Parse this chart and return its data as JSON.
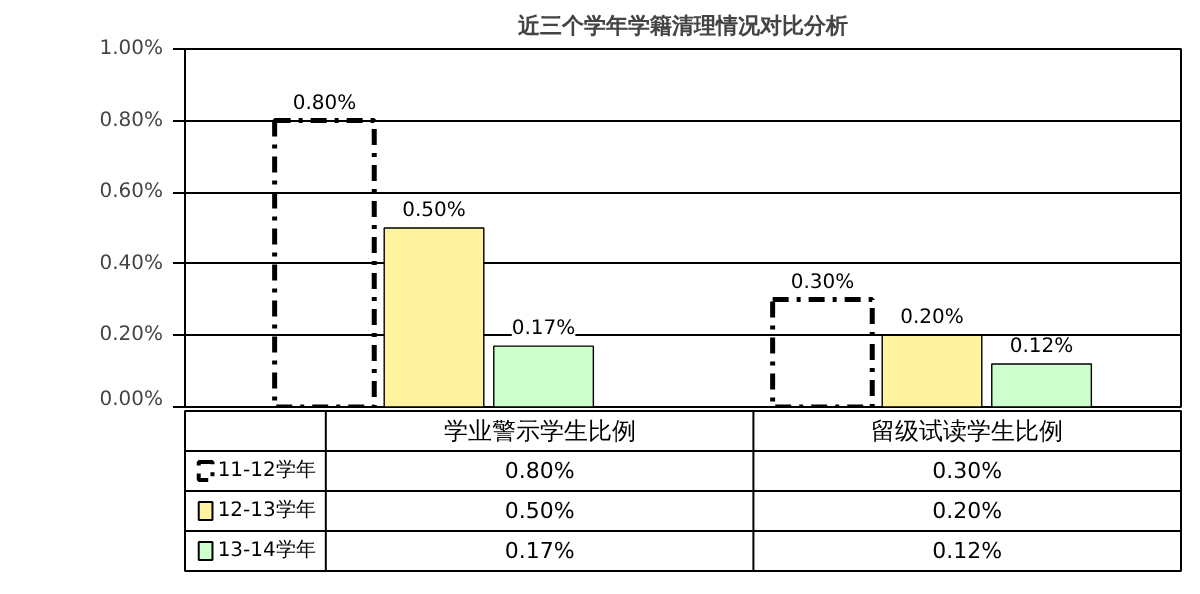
{
  "chart_data": {
    "type": "bar",
    "title": "近三个学年学籍清理情况对比分析",
    "categories": [
      "学业警示学生比例",
      "留级试读学生比例"
    ],
    "series": [
      {
        "name": "11-12学年",
        "color": "#000000",
        "line_style": "dashed",
        "values": [
          0.8,
          0.3
        ],
        "value_labels": [
          "0.80%",
          "0.30%"
        ]
      },
      {
        "name": "12-13学年",
        "color": "#fff3a0",
        "values": [
          0.5,
          0.2
        ],
        "value_labels": [
          "0.50%",
          "0.20%"
        ]
      },
      {
        "name": "13-14学年",
        "color": "#ccffcc",
        "values": [
          0.17,
          0.12
        ],
        "value_labels": [
          "0.17%",
          "0.12%"
        ]
      }
    ],
    "ylim": [
      0,
      1
    ],
    "yticks": [
      {
        "value": 0,
        "label": "0.00%"
      },
      {
        "value": 0.2,
        "label": "0.20%"
      },
      {
        "value": 0.4,
        "label": "0.40%"
      },
      {
        "value": 0.6,
        "label": "0.60%"
      },
      {
        "value": 0.8,
        "label": "0.80%"
      },
      {
        "value": 1.0,
        "label": "1.00%"
      }
    ],
    "grid": "y",
    "legend": "bottom"
  }
}
